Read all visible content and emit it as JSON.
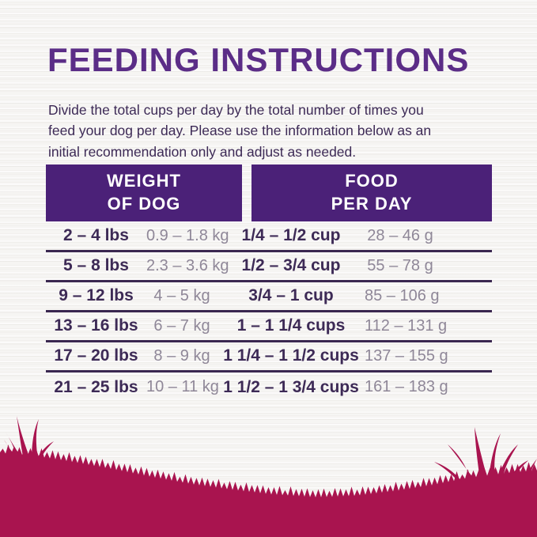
{
  "title": "FEEDING INSTRUCTIONS",
  "intro": "Divide the total cups per day by the total number of times you\nfeed your dog per day. Please use the information below as an\ninitial recommendation only and adjust as needed.",
  "table": {
    "headers": [
      {
        "text": "WEIGHT\nOF DOG"
      },
      {
        "text": "FOOD\nPER DAY"
      }
    ],
    "rows": [
      {
        "lbs": "2 – 4 lbs",
        "kg": "0.9 – 1.8 kg",
        "cups": "1/4 – 1/2 cup",
        "grams": "28 – 46 g"
      },
      {
        "lbs": "5 – 8 lbs",
        "kg": "2.3 – 3.6 kg",
        "cups": "1/2 – 3/4 cup",
        "grams": "55 – 78 g"
      },
      {
        "lbs": "9 – 12 lbs",
        "kg": "4 – 5 kg",
        "cups": "3/4 – 1 cup",
        "grams": "85 – 106 g"
      },
      {
        "lbs": "13 – 16 lbs",
        "kg": "6 – 7 kg",
        "cups": "1 – 1 1/4 cups",
        "grams": "112 – 131 g"
      },
      {
        "lbs": "17 – 20 lbs",
        "kg": "8 – 9 kg",
        "cups": "1 1/4 – 1 1/2 cups",
        "grams": "137 – 155 g"
      },
      {
        "lbs": "21 – 25 lbs",
        "kg": "10 – 11 kg",
        "cups": "1 1/2 – 1 3/4 cups",
        "grams": "161 – 183 g"
      }
    ]
  },
  "colors": {
    "title": "#5b2d87",
    "header_bg": "#4b2178",
    "header_text": "#ffffff",
    "text_dark": "#3d2a56",
    "text_muted": "#8f8798",
    "divider": "#3a2750",
    "grass": "#a9144f",
    "background": "#f6f5f3"
  }
}
